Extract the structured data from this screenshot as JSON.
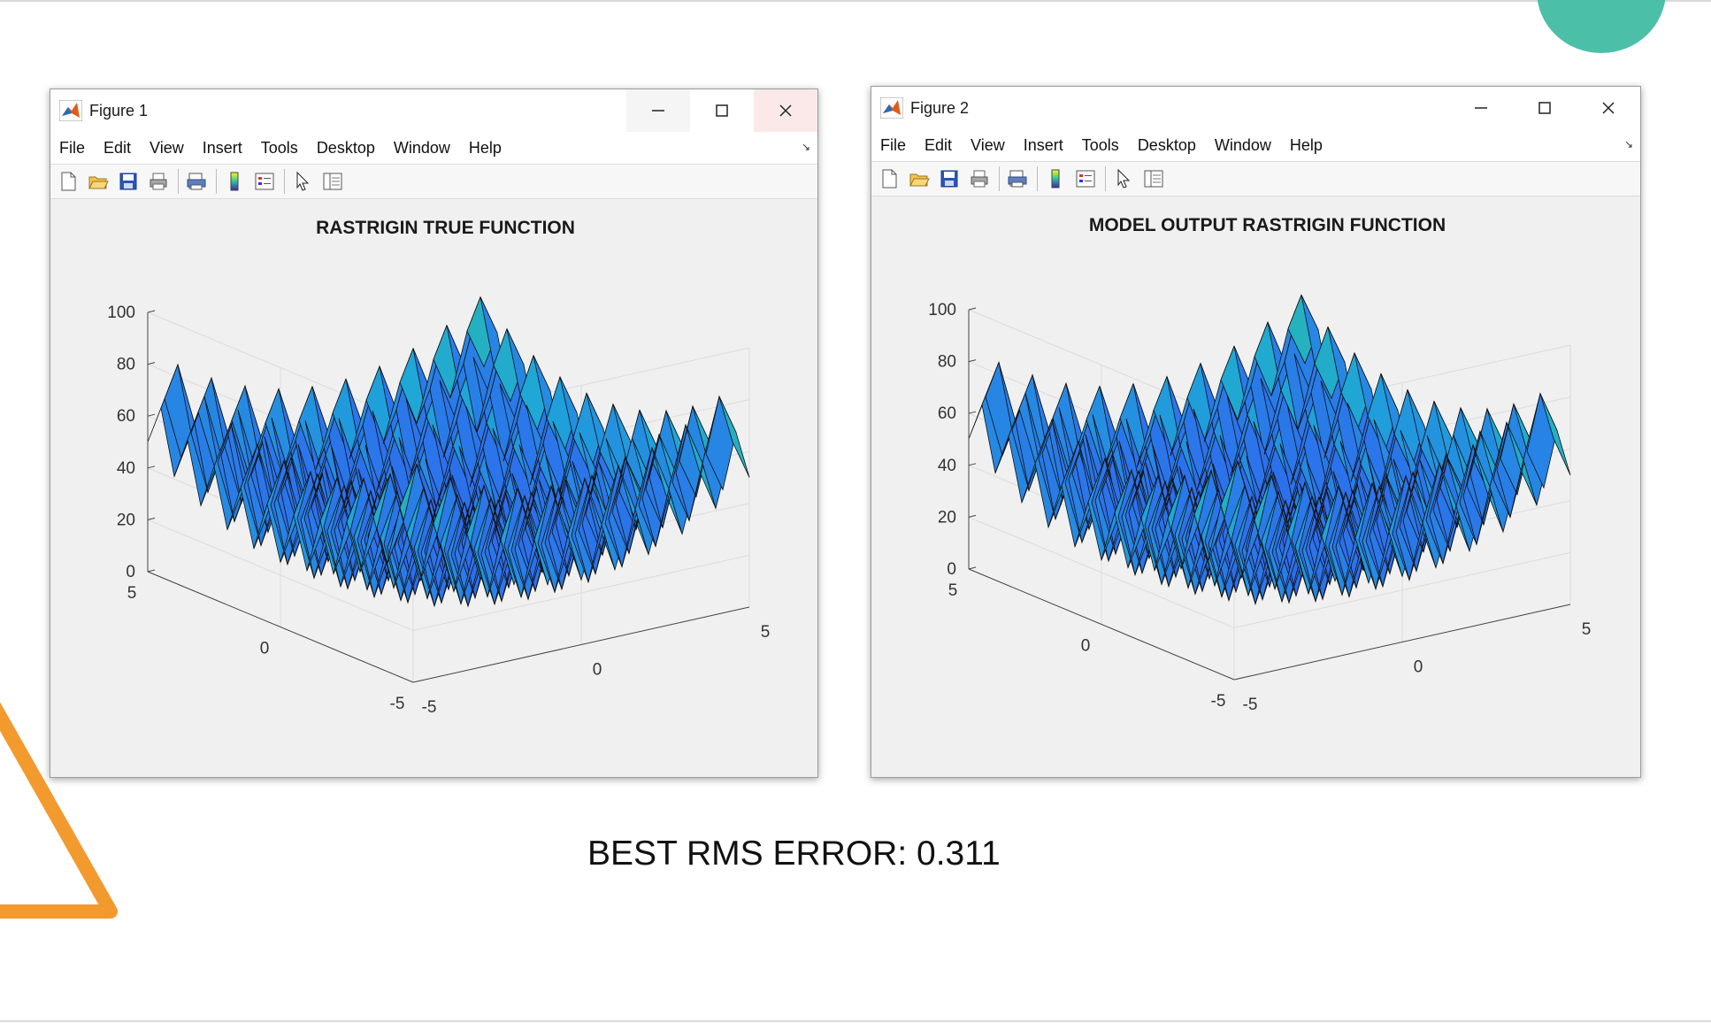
{
  "figures": [
    {
      "window_title": "Figure 1",
      "menu": [
        "File",
        "Edit",
        "View",
        "Insert",
        "Tools",
        "Desktop",
        "Window",
        "Help"
      ],
      "plot_title": "RASTRIGIN TRUE FUNCTION"
    },
    {
      "window_title": "Figure 2",
      "menu": [
        "File",
        "Edit",
        "View",
        "Insert",
        "Tools",
        "Desktop",
        "Window",
        "Help"
      ],
      "plot_title": "MODEL OUTPUT RASTRIGIN FUNCTION"
    }
  ],
  "toolbar_icons": [
    "new-file-icon",
    "open-folder-icon",
    "save-icon",
    "print-icon",
    "print-preview-icon",
    "colorbar-icon",
    "legend-icon",
    "pointer-icon",
    "property-editor-icon"
  ],
  "chart_data": [
    {
      "type": "surface",
      "title": "RASTRIGIN TRUE FUNCTION",
      "z_ticks": [
        "0",
        "20",
        "40",
        "60",
        "80",
        "100"
      ],
      "x_ticks": [
        "-5",
        "0",
        "5"
      ],
      "y_ticks": [
        "5",
        "0",
        "-5"
      ],
      "zlim": [
        0,
        100
      ],
      "xlim": [
        -5,
        5
      ],
      "ylim": [
        -5,
        5
      ],
      "colormap": [
        "#3e26a8",
        "#2f66f0",
        "#1ea5d8",
        "#30c1a0",
        "#7fcf6a",
        "#d5c346",
        "#f9fb15"
      ],
      "grid": true
    },
    {
      "type": "surface",
      "title": "MODEL OUTPUT RASTRIGIN FUNCTION",
      "z_ticks": [
        "0",
        "20",
        "40",
        "60",
        "80",
        "100"
      ],
      "x_ticks": [
        "-5",
        "0",
        "5"
      ],
      "y_ticks": [
        "5",
        "0",
        "-5"
      ],
      "zlim": [
        0,
        100
      ],
      "xlim": [
        -5,
        5
      ],
      "ylim": [
        -5,
        5
      ],
      "colormap": [
        "#3e26a8",
        "#2f66f0",
        "#1ea5d8",
        "#30c1a0",
        "#7fcf6a",
        "#d5c346",
        "#f9fb15"
      ],
      "grid": true
    }
  ],
  "rms": {
    "label": "BEST RMS ERROR: 0.311"
  },
  "colors": {
    "accent_circle": "#4cbfa8",
    "accent_triangle": "#f39a2e"
  }
}
